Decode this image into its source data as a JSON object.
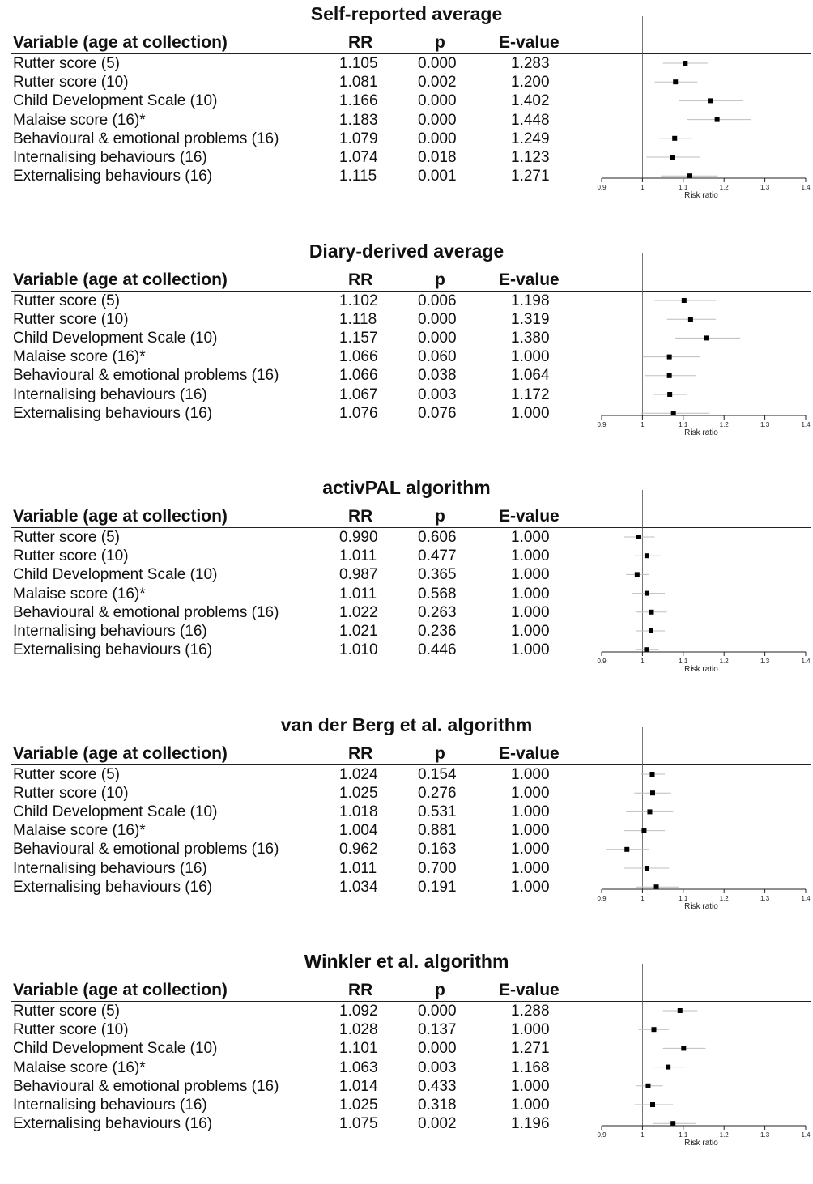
{
  "column_headers": {
    "variable": "Variable (age at collection)",
    "rr": "RR",
    "p": "p",
    "evalue": "E-value"
  },
  "chart_data": [
    {
      "type": "forest",
      "title": "Self-reported average",
      "xlabel": "Risk ratio",
      "xlim": [
        0.9,
        1.4
      ],
      "xticks": [
        0.9,
        1,
        1.1,
        1.2,
        1.3,
        1.4
      ],
      "tick_labels": [
        "0.9",
        "1",
        "1.1",
        "1.2",
        "1.3",
        "1.4"
      ],
      "reference_line": 1,
      "rows": [
        {
          "variable": "Rutter score (5)",
          "rr": "1.105",
          "p": "0.000",
          "evalue": "1.283",
          "est": 1.105,
          "lo": 1.05,
          "hi": 1.16
        },
        {
          "variable": "Rutter score (10)",
          "rr": "1.081",
          "p": "0.002",
          "evalue": "1.200",
          "est": 1.081,
          "lo": 1.03,
          "hi": 1.135
        },
        {
          "variable": "Child Development Scale (10)",
          "rr": "1.166",
          "p": "0.000",
          "evalue": "1.402",
          "est": 1.166,
          "lo": 1.09,
          "hi": 1.245
        },
        {
          "variable": "Malaise score (16)*",
          "rr": "1.183",
          "p": "0.000",
          "evalue": "1.448",
          "est": 1.183,
          "lo": 1.11,
          "hi": 1.265
        },
        {
          "variable": "Behavioural & emotional problems (16)",
          "rr": "1.079",
          "p": "0.000",
          "evalue": "1.249",
          "est": 1.079,
          "lo": 1.04,
          "hi": 1.12
        },
        {
          "variable": "Internalising behaviours (16)",
          "rr": "1.074",
          "p": "0.018",
          "evalue": "1.123",
          "est": 1.074,
          "lo": 1.01,
          "hi": 1.14
        },
        {
          "variable": "Externalising behaviours (16)",
          "rr": "1.115",
          "p": "0.001",
          "evalue": "1.271",
          "est": 1.115,
          "lo": 1.045,
          "hi": 1.185
        }
      ]
    },
    {
      "type": "forest",
      "title": "Diary-derived average",
      "xlabel": "Risk ratio",
      "xlim": [
        0.9,
        1.4
      ],
      "xticks": [
        0.9,
        1,
        1.1,
        1.2,
        1.3,
        1.4
      ],
      "tick_labels": [
        "0.9",
        "1",
        "1.1",
        "1.2",
        "1.3",
        "1.4"
      ],
      "reference_line": 1,
      "rows": [
        {
          "variable": "Rutter score (5)",
          "rr": "1.102",
          "p": "0.006",
          "evalue": "1.198",
          "est": 1.102,
          "lo": 1.03,
          "hi": 1.18
        },
        {
          "variable": "Rutter score (10)",
          "rr": "1.118",
          "p": "0.000",
          "evalue": "1.319",
          "est": 1.118,
          "lo": 1.06,
          "hi": 1.18
        },
        {
          "variable": "Child Development Scale (10)",
          "rr": "1.157",
          "p": "0.000",
          "evalue": "1.380",
          "est": 1.157,
          "lo": 1.08,
          "hi": 1.24
        },
        {
          "variable": "Malaise score (16)*",
          "rr": "1.066",
          "p": "0.060",
          "evalue": "1.000",
          "est": 1.066,
          "lo": 1.0,
          "hi": 1.14
        },
        {
          "variable": "Behavioural & emotional problems (16)",
          "rr": "1.066",
          "p": "0.038",
          "evalue": "1.064",
          "est": 1.066,
          "lo": 1.005,
          "hi": 1.13
        },
        {
          "variable": "Internalising behaviours (16)",
          "rr": "1.067",
          "p": "0.003",
          "evalue": "1.172",
          "est": 1.067,
          "lo": 1.025,
          "hi": 1.11
        },
        {
          "variable": "Externalising behaviours (16)",
          "rr": "1.076",
          "p": "0.076",
          "evalue": "1.000",
          "est": 1.076,
          "lo": 0.995,
          "hi": 1.165
        }
      ]
    },
    {
      "type": "forest",
      "title": "activPAL algorithm",
      "xlabel": "Risk ratio",
      "xlim": [
        0.9,
        1.4
      ],
      "xticks": [
        0.9,
        1,
        1.1,
        1.2,
        1.3,
        1.4
      ],
      "tick_labels": [
        "0.9",
        "1",
        "1.1",
        "1.2",
        "1.3",
        "1.4"
      ],
      "reference_line": 1,
      "rows": [
        {
          "variable": "Rutter score (5)",
          "rr": "0.990",
          "p": "0.606",
          "evalue": "1.000",
          "est": 0.99,
          "lo": 0.955,
          "hi": 1.03
        },
        {
          "variable": "Rutter score (10)",
          "rr": "1.011",
          "p": "0.477",
          "evalue": "1.000",
          "est": 1.011,
          "lo": 0.98,
          "hi": 1.045
        },
        {
          "variable": "Child Development Scale (10)",
          "rr": "0.987",
          "p": "0.365",
          "evalue": "1.000",
          "est": 0.987,
          "lo": 0.96,
          "hi": 1.015
        },
        {
          "variable": "Malaise score (16)*",
          "rr": "1.011",
          "p": "0.568",
          "evalue": "1.000",
          "est": 1.011,
          "lo": 0.975,
          "hi": 1.055
        },
        {
          "variable": "Behavioural & emotional problems (16)",
          "rr": "1.022",
          "p": "0.263",
          "evalue": "1.000",
          "est": 1.022,
          "lo": 0.985,
          "hi": 1.06
        },
        {
          "variable": "Internalising behaviours (16)",
          "rr": "1.021",
          "p": "0.236",
          "evalue": "1.000",
          "est": 1.021,
          "lo": 0.985,
          "hi": 1.055
        },
        {
          "variable": "Externalising behaviours (16)",
          "rr": "1.010",
          "p": "0.446",
          "evalue": "1.000",
          "est": 1.01,
          "lo": 0.985,
          "hi": 1.04
        }
      ]
    },
    {
      "type": "forest",
      "title": "van der Berg et al. algorithm",
      "xlabel": "Risk ratio",
      "xlim": [
        0.9,
        1.4
      ],
      "xticks": [
        0.9,
        1,
        1.1,
        1.2,
        1.3,
        1.4
      ],
      "tick_labels": [
        "0.9",
        "1",
        "1.1",
        "1.2",
        "1.3",
        "1.4"
      ],
      "reference_line": 1,
      "rows": [
        {
          "variable": "Rutter score (5)",
          "rr": "1.024",
          "p": "0.154",
          "evalue": "1.000",
          "est": 1.024,
          "lo": 0.995,
          "hi": 1.055
        },
        {
          "variable": "Rutter score (10)",
          "rr": "1.025",
          "p": "0.276",
          "evalue": "1.000",
          "est": 1.025,
          "lo": 0.98,
          "hi": 1.07
        },
        {
          "variable": "Child Development Scale (10)",
          "rr": "1.018",
          "p": "0.531",
          "evalue": "1.000",
          "est": 1.018,
          "lo": 0.96,
          "hi": 1.075
        },
        {
          "variable": "Malaise score (16)*",
          "rr": "1.004",
          "p": "0.881",
          "evalue": "1.000",
          "est": 1.004,
          "lo": 0.955,
          "hi": 1.055
        },
        {
          "variable": "Behavioural & emotional problems (16)",
          "rr": "0.962",
          "p": "0.163",
          "evalue": "1.000",
          "est": 0.962,
          "lo": 0.91,
          "hi": 1.015
        },
        {
          "variable": "Internalising behaviours (16)",
          "rr": "1.011",
          "p": "0.700",
          "evalue": "1.000",
          "est": 1.011,
          "lo": 0.955,
          "hi": 1.065
        },
        {
          "variable": "Externalising behaviours (16)",
          "rr": "1.034",
          "p": "0.191",
          "evalue": "1.000",
          "est": 1.034,
          "lo": 0.985,
          "hi": 1.09
        }
      ]
    },
    {
      "type": "forest",
      "title": "Winkler et al. algorithm",
      "xlabel": "Risk ratio",
      "xlim": [
        0.9,
        1.4
      ],
      "xticks": [
        0.9,
        1,
        1.1,
        1.2,
        1.3,
        1.4
      ],
      "tick_labels": [
        "0.9",
        "1",
        "1.1",
        "1.2",
        "1.3",
        "1.4"
      ],
      "reference_line": 1,
      "rows": [
        {
          "variable": "Rutter score (5)",
          "rr": "1.092",
          "p": "0.000",
          "evalue": "1.288",
          "est": 1.092,
          "lo": 1.05,
          "hi": 1.135
        },
        {
          "variable": "Rutter score (10)",
          "rr": "1.028",
          "p": "0.137",
          "evalue": "1.000",
          "est": 1.028,
          "lo": 0.99,
          "hi": 1.065
        },
        {
          "variable": "Child Development Scale (10)",
          "rr": "1.101",
          "p": "0.000",
          "evalue": "1.271",
          "est": 1.101,
          "lo": 1.05,
          "hi": 1.155
        },
        {
          "variable": "Malaise score (16)*",
          "rr": "1.063",
          "p": "0.003",
          "evalue": "1.168",
          "est": 1.063,
          "lo": 1.025,
          "hi": 1.105
        },
        {
          "variable": "Behavioural & emotional problems (16)",
          "rr": "1.014",
          "p": "0.433",
          "evalue": "1.000",
          "est": 1.014,
          "lo": 0.985,
          "hi": 1.05
        },
        {
          "variable": "Internalising behaviours (16)",
          "rr": "1.025",
          "p": "0.318",
          "evalue": "1.000",
          "est": 1.025,
          "lo": 0.98,
          "hi": 1.075
        },
        {
          "variable": "Externalising behaviours (16)",
          "rr": "1.075",
          "p": "0.002",
          "evalue": "1.196",
          "est": 1.075,
          "lo": 1.025,
          "hi": 1.13
        }
      ]
    }
  ]
}
